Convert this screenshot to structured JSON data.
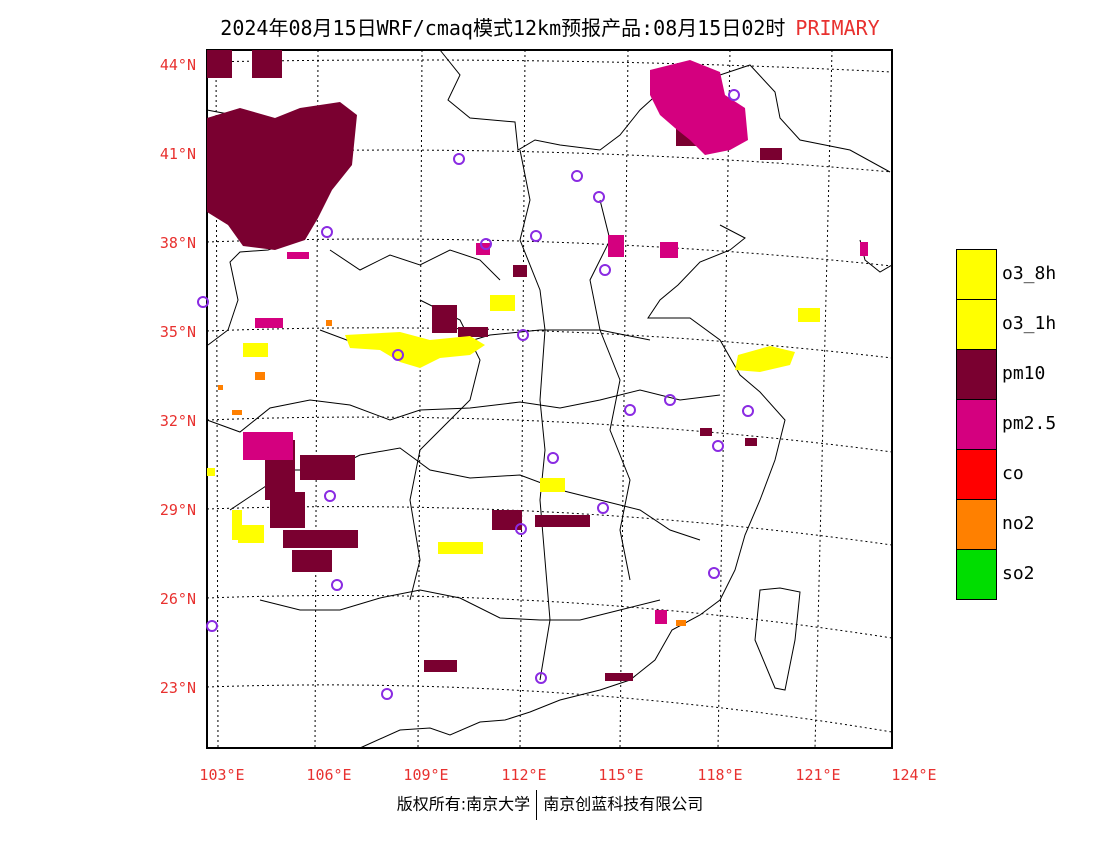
{
  "title": {
    "main": "2024年08月15日WRF/cmaq模式12km预报产品:08月15日02时",
    "tag": "PRIMARY"
  },
  "colors": {
    "accent_red": "#e8312f",
    "o3_8h": "#ffff00",
    "o3_1h": "#ffff00",
    "pm10": "#7a0030",
    "pm2_5": "#d4007f",
    "co": "#ff0000",
    "no2": "#ff8000",
    "so2": "#00dd00",
    "station_circle": "#8a2be2"
  },
  "lat_labels": [
    "44°N",
    "41°N",
    "38°N",
    "35°N",
    "32°N",
    "29°N",
    "26°N",
    "23°N"
  ],
  "lon_labels": [
    "103°E",
    "106°E",
    "109°E",
    "112°E",
    "115°E",
    "118°E",
    "121°E",
    "124°E"
  ],
  "legend": [
    {
      "key": "o3_8h",
      "label": "o3_8h",
      "color": "#ffff00"
    },
    {
      "key": "o3_1h",
      "label": "o3_1h",
      "color": "#ffff00"
    },
    {
      "key": "pm10",
      "label": "pm10",
      "color": "#7a0030"
    },
    {
      "key": "pm2_5",
      "label": "pm2.5",
      "color": "#d4007f"
    },
    {
      "key": "co",
      "label": "co",
      "color": "#ff0000"
    },
    {
      "key": "no2",
      "label": "no2",
      "color": "#ff8000"
    },
    {
      "key": "so2",
      "label": "so2",
      "color": "#00dd00"
    }
  ],
  "footer": {
    "left": "版权所有:南京大学",
    "right": "南京创蓝科技有限公司"
  }
}
